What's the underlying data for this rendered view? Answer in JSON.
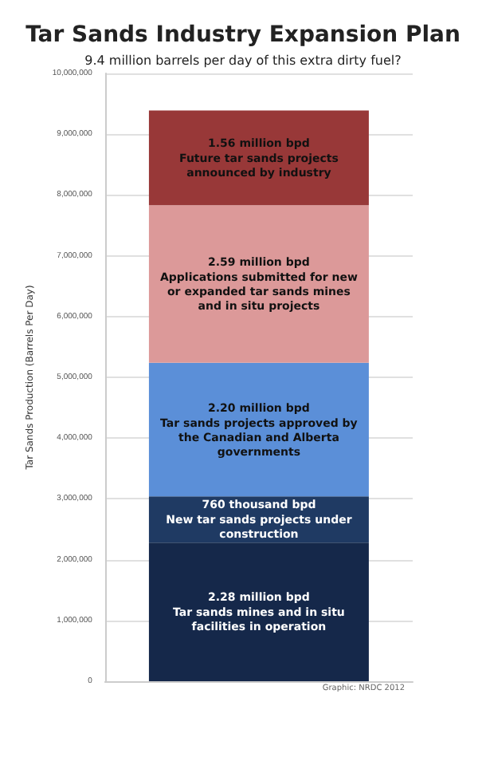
{
  "chart_data": {
    "type": "bar",
    "stacked": true,
    "title": "Tar Sands Industry Expansion Plan",
    "subtitle": "9.4 million barrels per day of this extra dirty fuel?",
    "ylabel": "Tar Sands Production (Barrels Per Day)",
    "categories": [
      null
    ],
    "series": [
      {
        "name": "Tar sands mines and in situ facilities in operation",
        "color": "#15284a",
        "values": [
          2280000
        ],
        "value_labels": [
          "2.28 million bpd"
        ]
      },
      {
        "name": "New tar sands projects under construction",
        "color": "#1f3a63",
        "values": [
          760000
        ],
        "value_labels": [
          "760 thousand bpd"
        ]
      },
      {
        "name": "Tar sands projects approved by the Canadian and Alberta governments",
        "color": "#5b8fd8",
        "values": [
          2200000
        ],
        "value_labels": [
          "2.20 million bpd"
        ]
      },
      {
        "name": "Applications submitted for new or expanded tar sands mines and in situ projects",
        "color": "#dc9999",
        "values": [
          2590000
        ],
        "value_labels": [
          "2.59 million bpd"
        ]
      },
      {
        "name": "Future tar sands projects announced by industry",
        "color": "#983838",
        "values": [
          1560000
        ],
        "value_labels": [
          "1.56 million bpd"
        ]
      }
    ],
    "ylim": [
      0,
      10000000
    ],
    "yticks": [
      {
        "value": 0,
        "label": "0"
      },
      {
        "value": 1000000,
        "label": "1,000,000"
      },
      {
        "value": 2000000,
        "label": "2,000,000"
      },
      {
        "value": 3000000,
        "label": "3,000,000"
      },
      {
        "value": 4000000,
        "label": "4,000,000"
      },
      {
        "value": 5000000,
        "label": "5,000,000"
      },
      {
        "value": 6000000,
        "label": "6,000,000"
      },
      {
        "value": 7000000,
        "label": "7,000,000"
      },
      {
        "value": 8000000,
        "label": "8,000,000"
      },
      {
        "value": 9000000,
        "label": "9,000,000"
      },
      {
        "value": 10000000,
        "label": "10,000,000"
      }
    ],
    "grid": "y",
    "legend": false,
    "annotations": [
      "Graphic: NRDC 2012"
    ]
  }
}
